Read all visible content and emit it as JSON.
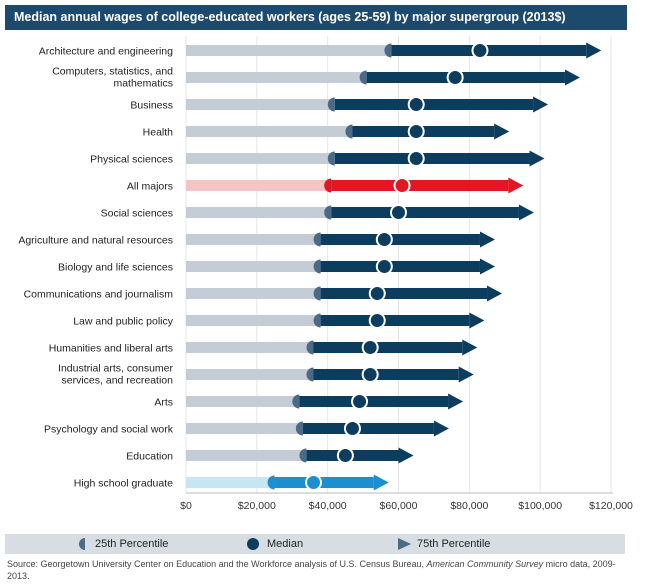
{
  "title": "Median annual wages of college-educated workers (ages 25-59) by major supergroup (2013$)",
  "chart_data": {
    "type": "range-bar",
    "title": "Median annual wages of college-educated workers (ages 25-59) by major supergroup (2013$)",
    "xlabel": "",
    "ylabel": "",
    "xlim": [
      0,
      120000
    ],
    "x_ticks": [
      0,
      20000,
      40000,
      60000,
      80000,
      100000,
      120000
    ],
    "x_tick_labels": [
      "$0",
      "$20,000",
      "$40,000",
      "$60,000",
      "$80,000",
      "$100,000",
      "$120,000"
    ],
    "grid": true,
    "categories": [
      {
        "label": "Architecture and engineering",
        "p25": 58000,
        "median": 83000,
        "p75": 113000,
        "style": "default"
      },
      {
        "label": "Computers, statistics, and mathematics",
        "p25": 51000,
        "median": 76000,
        "p75": 107000,
        "style": "default"
      },
      {
        "label": "Business",
        "p25": 42000,
        "median": 65000,
        "p75": 98000,
        "style": "default"
      },
      {
        "label": "Health",
        "p25": 47000,
        "median": 65000,
        "p75": 87000,
        "style": "default"
      },
      {
        "label": "Physical sciences",
        "p25": 42000,
        "median": 65000,
        "p75": 97000,
        "style": "default"
      },
      {
        "label": "All majors",
        "p25": 41000,
        "median": 61000,
        "p75": 91000,
        "style": "highlight"
      },
      {
        "label": "Social sciences",
        "p25": 41000,
        "median": 60000,
        "p75": 94000,
        "style": "default"
      },
      {
        "label": "Agriculture and natural resources",
        "p25": 38000,
        "median": 56000,
        "p75": 83000,
        "style": "default"
      },
      {
        "label": "Biology and life sciences",
        "p25": 38000,
        "median": 56000,
        "p75": 83000,
        "style": "default"
      },
      {
        "label": "Communications and journalism",
        "p25": 38000,
        "median": 54000,
        "p75": 85000,
        "style": "default"
      },
      {
        "label": "Law and public policy",
        "p25": 38000,
        "median": 54000,
        "p75": 80000,
        "style": "default"
      },
      {
        "label": "Humanities and liberal arts",
        "p25": 36000,
        "median": 52000,
        "p75": 78000,
        "style": "default"
      },
      {
        "label": "Industrial arts, consumer services, and recreation",
        "p25": 36000,
        "median": 52000,
        "p75": 77000,
        "style": "default"
      },
      {
        "label": "Arts",
        "p25": 32000,
        "median": 49000,
        "p75": 74000,
        "style": "default"
      },
      {
        "label": "Psychology and social work",
        "p25": 33000,
        "median": 47000,
        "p75": 70000,
        "style": "default"
      },
      {
        "label": "Education",
        "p25": 34000,
        "median": 45000,
        "p75": 60000,
        "style": "default"
      },
      {
        "label": "High school graduate",
        "p25": 25000,
        "median": 36000,
        "p75": 53000,
        "style": "baseline"
      }
    ]
  },
  "legend": {
    "p25": "25th Percentile",
    "median": "Median",
    "p75": "75th Percentile"
  },
  "source": {
    "prefix": "Source: Georgetown University Center on Education and the Workforce analysis of U.S. Census Bureau, ",
    "italic": "American Community Survey",
    "suffix": " micro data, 2009-2013."
  },
  "colors": {
    "title_bg": "#1d4a6c",
    "bar_dark": "#0c3d5e",
    "bar_light": "#c4cdd6",
    "marker": "#4a6a85",
    "highlight_dark": "#e01823",
    "highlight_light": "#f7c4c6",
    "baseline_dark": "#1b8fd0",
    "baseline_light": "#c7e6f4",
    "legend_bg": "#d7dde3",
    "grid": "#e3e6e9"
  }
}
